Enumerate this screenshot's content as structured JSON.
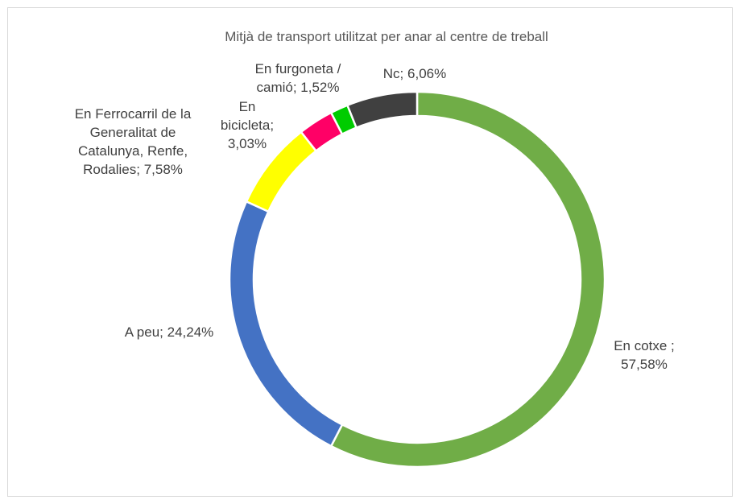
{
  "chart_data": {
    "type": "donut",
    "title": "Mitjà de transport utilitzat per anar al centre de treball",
    "categories": [
      "En cotxe ;",
      "A peu;",
      "En Ferrocarril de la Generalitat de Catalunya, Renfe, Rodalies;",
      "En bicicleta;",
      "En furgoneta / camió;",
      "Nc;"
    ],
    "values": [
      57.58,
      24.24,
      7.58,
      3.03,
      1.52,
      6.06
    ],
    "value_labels": [
      "57,58%",
      "24,24%",
      "7,58%",
      "3,03%",
      "1,52%",
      "6,06%"
    ],
    "colors": [
      "#70ad47",
      "#4472c4",
      "#ffff00",
      "#ff0066",
      "#00cc00",
      "#404040"
    ]
  }
}
